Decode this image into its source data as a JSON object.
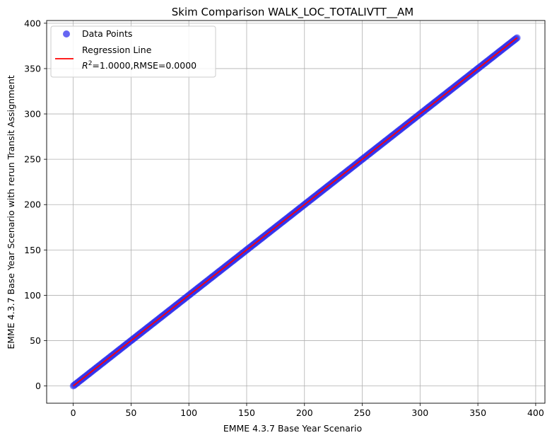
{
  "chart_data": {
    "type": "scatter",
    "title": "Skim Comparison WALK_LOC_TOTALIVTT__AM",
    "xlabel": "EMME 4.3.7 Base Year Scenario",
    "ylabel": "EMME 4.3.7 Base Year Scenario with rerun Transit Assignment",
    "xlim": [
      -23,
      408
    ],
    "ylim": [
      -19,
      403
    ],
    "xticks": [
      0,
      50,
      100,
      150,
      200,
      250,
      300,
      350,
      400
    ],
    "yticks": [
      0,
      50,
      100,
      150,
      200,
      250,
      300,
      350,
      400
    ],
    "grid": true,
    "legend_position": "top-left",
    "series": [
      {
        "name": "Data Points",
        "kind": "scatter",
        "color": "#3333ee",
        "x_range": [
          0,
          384
        ],
        "y_range": [
          0,
          384
        ]
      },
      {
        "name": "Regression Line",
        "kind": "line",
        "color": "#ff0000",
        "x": [
          0,
          384
        ],
        "y": [
          0,
          384
        ]
      }
    ],
    "annotation": {
      "r2_prefix": "R",
      "r2_sup": "2",
      "stats_text": "=1.0000,RMSE=0.0000"
    }
  }
}
